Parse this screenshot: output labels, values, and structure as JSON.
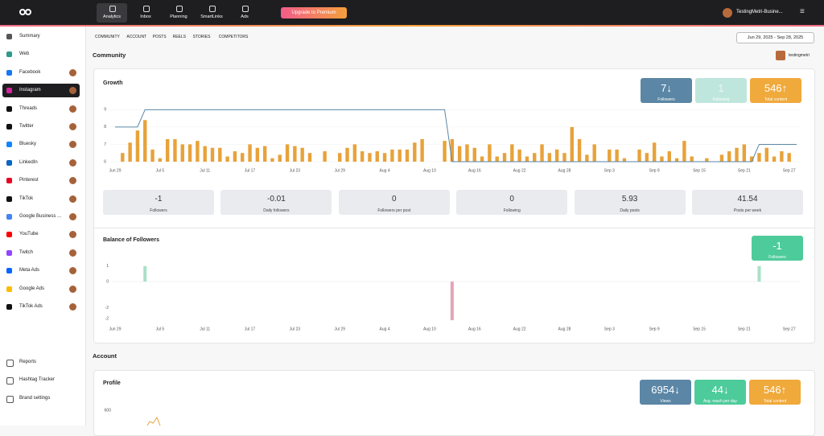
{
  "nav": {
    "items": [
      "Analytics",
      "Inbox",
      "Planning",
      "SmartLinks",
      "Ads"
    ],
    "upgrade": "Upgrade to Premium",
    "account": "TestingMetri-Busine..."
  },
  "sidebar": {
    "items": [
      "Summary",
      "Web",
      "Facebook",
      "Instagram",
      "Threads",
      "Twitter",
      "Bluesky",
      "LinkedIn",
      "Pinterest",
      "TikTok",
      "Google Business ...",
      "YouTube",
      "Twitch",
      "Meta Ads",
      "Google Ads",
      "TikTok Ads"
    ],
    "bottom": [
      "Reports",
      "Hashtag Tracker",
      "Brand settings"
    ]
  },
  "tabs": [
    "COMMUNITY",
    "ACCOUNT",
    "POSTS",
    "REELS",
    "STORIES",
    "COMPETITORS"
  ],
  "date_range": "Jun 29, 2025 - Sep 28, 2025",
  "community": {
    "title": "Community",
    "profile": "testingmetri"
  },
  "growth": {
    "title": "Growth",
    "stats": [
      {
        "value": "7↓",
        "label": "Followers",
        "color": "#5b86a5"
      },
      {
        "value": "1",
        "label": "Following",
        "color": "#bfe6dc"
      },
      {
        "value": "546↑",
        "label": "Total content",
        "color": "#f0a93b"
      }
    ],
    "chart": {
      "type": "bar-line",
      "ylim": [
        6,
        9.2
      ],
      "yticks": [
        6,
        7,
        8,
        9
      ],
      "xlim": [
        0,
        91
      ],
      "xticks": [
        {
          "value": 0,
          "label": "Jun 29"
        },
        {
          "value": 6,
          "label": "Jul 5"
        },
        {
          "value": 12,
          "label": "Jul 11"
        },
        {
          "value": 18,
          "label": "Jul 17"
        },
        {
          "value": 24,
          "label": "Jul 23"
        },
        {
          "value": 30,
          "label": "Jul 29"
        },
        {
          "value": 36,
          "label": "Aug 4"
        },
        {
          "value": 42,
          "label": "Aug 10"
        },
        {
          "value": 48,
          "label": "Aug 16"
        },
        {
          "value": 54,
          "label": "Aug 22"
        },
        {
          "value": 60,
          "label": "Aug 28"
        },
        {
          "value": 66,
          "label": "Sep 3"
        },
        {
          "value": 72,
          "label": "Sep 9"
        },
        {
          "value": 78,
          "label": "Sep 15"
        },
        {
          "value": 84,
          "label": "Sep 21"
        },
        {
          "value": 90,
          "label": "Sep 27"
        }
      ],
      "bars": {
        "color": "#e8a23a",
        "x": [
          1,
          2,
          3,
          4,
          5,
          6,
          7,
          8,
          9,
          10,
          11,
          12,
          13,
          14,
          15,
          16,
          17,
          18,
          19,
          20,
          21,
          22,
          23,
          24,
          25,
          26,
          28,
          30,
          31,
          32,
          33,
          34,
          35,
          36,
          37,
          38,
          39,
          40,
          41,
          44,
          45,
          46,
          47,
          48,
          49,
          50,
          51,
          52,
          53,
          54,
          55,
          56,
          57,
          58,
          59,
          60,
          61,
          62,
          63,
          64,
          66,
          67,
          68,
          70,
          71,
          72,
          73,
          74,
          75,
          76,
          77,
          79,
          81,
          82,
          83,
          84,
          85,
          86,
          87,
          88,
          89,
          90
        ],
        "values": [
          6.5,
          7.1,
          7.8,
          8.4,
          6.7,
          6.2,
          7.3,
          7.3,
          7,
          7,
          7.2,
          6.9,
          6.8,
          6.8,
          6.3,
          6.6,
          6.5,
          7,
          6.8,
          6.9,
          6.2,
          6.4,
          7,
          6.9,
          6.8,
          6.5,
          6.6,
          6.5,
          6.8,
          7,
          6.6,
          6.5,
          6.6,
          6.5,
          6.7,
          6.7,
          6.7,
          7.1,
          7.3,
          7.2,
          7.3,
          6.9,
          7,
          6.8,
          6.3,
          7,
          6.3,
          6.5,
          7,
          6.7,
          6.3,
          6.5,
          7,
          6.5,
          6.7,
          6.5,
          8,
          7.3,
          6.4,
          7,
          6.7,
          6.7,
          6.2,
          6.7,
          6.5,
          7.1,
          6.3,
          6.6,
          6.2,
          7.2,
          6.3,
          6.2,
          6.4,
          6.6,
          6.8,
          7,
          6.3,
          6.5,
          6.8,
          6.3,
          6.6,
          6.5
        ]
      },
      "line": {
        "color": "#5b86a5",
        "x": [
          0,
          3,
          4,
          44,
          45,
          85,
          86,
          91
        ],
        "values": [
          8,
          8,
          9,
          9,
          6,
          6,
          7,
          7
        ]
      },
      "grid": true
    },
    "summary": [
      {
        "value": "-1",
        "label": "Followers"
      },
      {
        "value": "-0.01",
        "label": "Daily followers"
      },
      {
        "value": "0",
        "label": "Followers per post"
      },
      {
        "value": "0",
        "label": "Following"
      },
      {
        "value": "5.93",
        "label": "Daily posts"
      },
      {
        "value": "41.54",
        "label": "Posts per week"
      }
    ]
  },
  "balance": {
    "title": "Balance of Followers",
    "stat": {
      "value": "-1",
      "label": "Followers",
      "color": "#4ecb9b"
    },
    "chart": {
      "type": "bar",
      "ylim": [
        -2.6,
        1.2
      ],
      "yticks": [
        1,
        0,
        {
          "value": -1.7,
          "label": "-2"
        },
        {
          "value": -2.4,
          "label": "-2"
        }
      ],
      "xlim": [
        0,
        91
      ],
      "x": [
        4,
        45,
        86
      ],
      "values": [
        1,
        -2.5,
        1
      ],
      "pos_color": "#a8e0c8",
      "neg_color": "#e5a3b5"
    }
  },
  "account": {
    "title": "Account",
    "profile_title": "Profile",
    "stats": [
      {
        "value": "6954↓",
        "label": "Views",
        "color": "#5b86a5"
      },
      {
        "value": "44↓",
        "label": "Avg. reach per day",
        "color": "#4ecb9b"
      },
      {
        "value": "546↑",
        "label": "Total content",
        "color": "#f0a93b"
      }
    ],
    "chart_yticks": [
      600
    ]
  }
}
